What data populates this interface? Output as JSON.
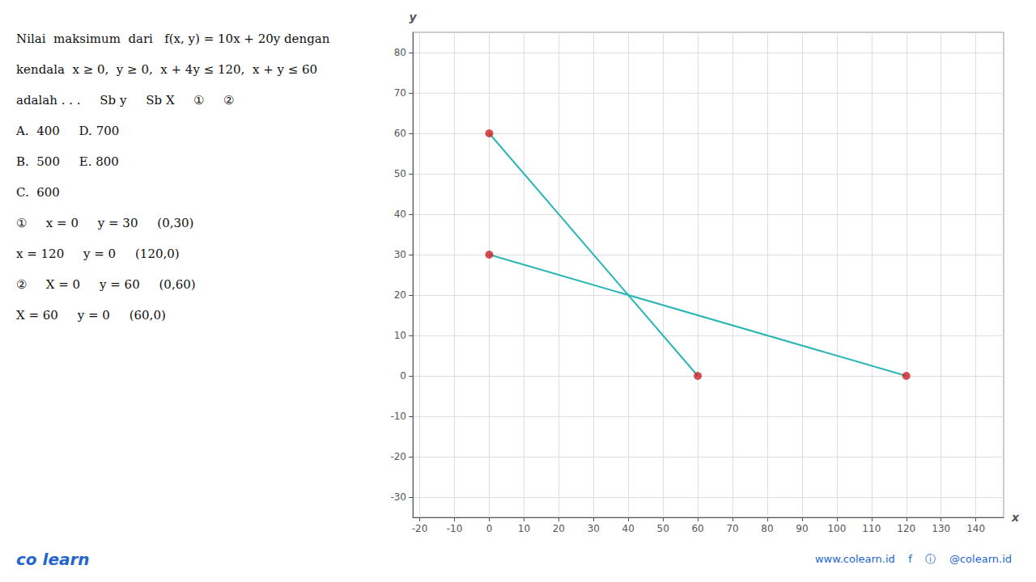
{
  "chart_data": {
    "type": "line",
    "xlabel": "x",
    "ylabel": "y",
    "xlim": [
      -22,
      148
    ],
    "ylim": [
      -35,
      85
    ],
    "xticks": [
      -20,
      -10,
      0,
      10,
      20,
      30,
      40,
      50,
      60,
      70,
      80,
      90,
      100,
      110,
      120,
      130,
      140
    ],
    "yticks": [
      -30,
      -20,
      -10,
      0,
      10,
      20,
      30,
      40,
      50,
      60,
      70,
      80
    ],
    "grid": true,
    "series": [
      {
        "type": "line",
        "color": "#2ab5b5",
        "x": [
          0,
          120
        ],
        "values": [
          30,
          0
        ]
      },
      {
        "type": "line",
        "color": "#2ab5b5",
        "x": [
          0,
          60
        ],
        "values": [
          60,
          0
        ]
      },
      {
        "type": "scatter",
        "color": "#cc2222",
        "x": [
          0,
          0,
          60,
          120
        ],
        "values": [
          60,
          30,
          0,
          0
        ]
      }
    ],
    "annotations": [
      [
        "Nilai  maksimum  dari   f(x, y) = 10x + 20y dengan"
      ],
      [
        "kendala  x ≥ 0,  y ≥ 0,  x + 4y ≤ 120,  x + y ≤ 60"
      ],
      [
        "adalah . . .",
        "Sb y",
        "Sb X",
        "①",
        "②"
      ],
      [
        "A.  400",
        "D. 700"
      ],
      [
        "B.  500",
        "E. 800"
      ],
      [
        "C.  600"
      ],
      [
        "①",
        "x = 0",
        "y = 30",
        "(0,30)"
      ],
      [
        "x = 120",
        "y = 0",
        "(120,0)"
      ],
      [
        "②",
        "X = 0",
        "y = 60",
        "(0,60)"
      ],
      [
        "X = 60",
        "y = 0",
        "(60,0)"
      ]
    ],
    "footer": [
      [
        "co",
        "learn"
      ],
      [
        "www.colearn.id",
        "f",
        "ⓘ",
        "@colearn.id"
      ]
    ]
  }
}
